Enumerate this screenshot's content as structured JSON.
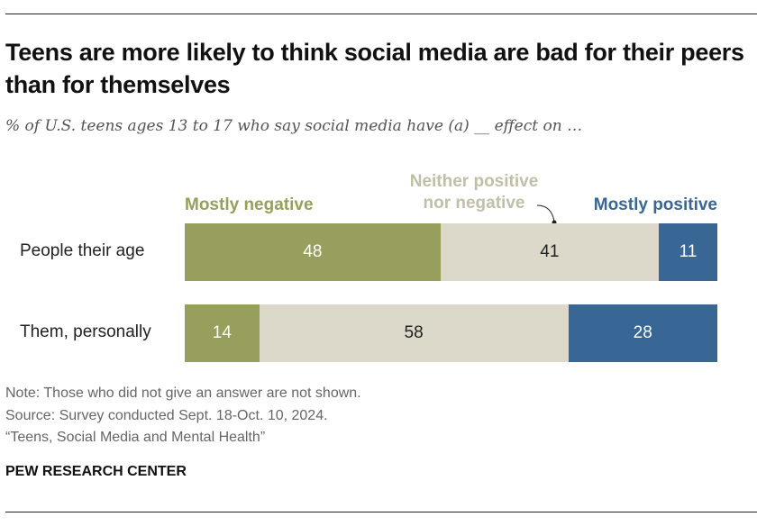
{
  "title": "Teens are more likely to think social media are bad for their peers than for themselves",
  "subtitle": "% of U.S. teens ages 13 to 17 who say social media have (a) __ effect on …",
  "chart_data": {
    "type": "bar",
    "orientation": "horizontal",
    "stacked": true,
    "categories": [
      "People their age",
      "Them, personally"
    ],
    "series": [
      {
        "name": "Mostly negative",
        "color": "#989f5c",
        "label_color": "#989f5c",
        "text_color": "#ffffff",
        "values": [
          48,
          14
        ]
      },
      {
        "name": "Neither positive nor negative",
        "color": "#dcd9cb",
        "label_color": "#c2bfa8",
        "text_color": "#222222",
        "values": [
          41,
          58
        ]
      },
      {
        "name": "Mostly positive",
        "color": "#386795",
        "label_color": "#386795",
        "text_color": "#ffffff",
        "values": [
          11,
          28
        ]
      }
    ],
    "xlim": [
      0,
      100
    ],
    "grid": false,
    "legend": "top"
  },
  "notes": {
    "note": "Note: Those who did not give an answer are not shown.",
    "source": "Source: Survey conducted Sept. 18-Oct. 10, 2024.",
    "report": "“Teens, Social Media and Mental Health”"
  },
  "brand": "PEW RESEARCH CENTER"
}
